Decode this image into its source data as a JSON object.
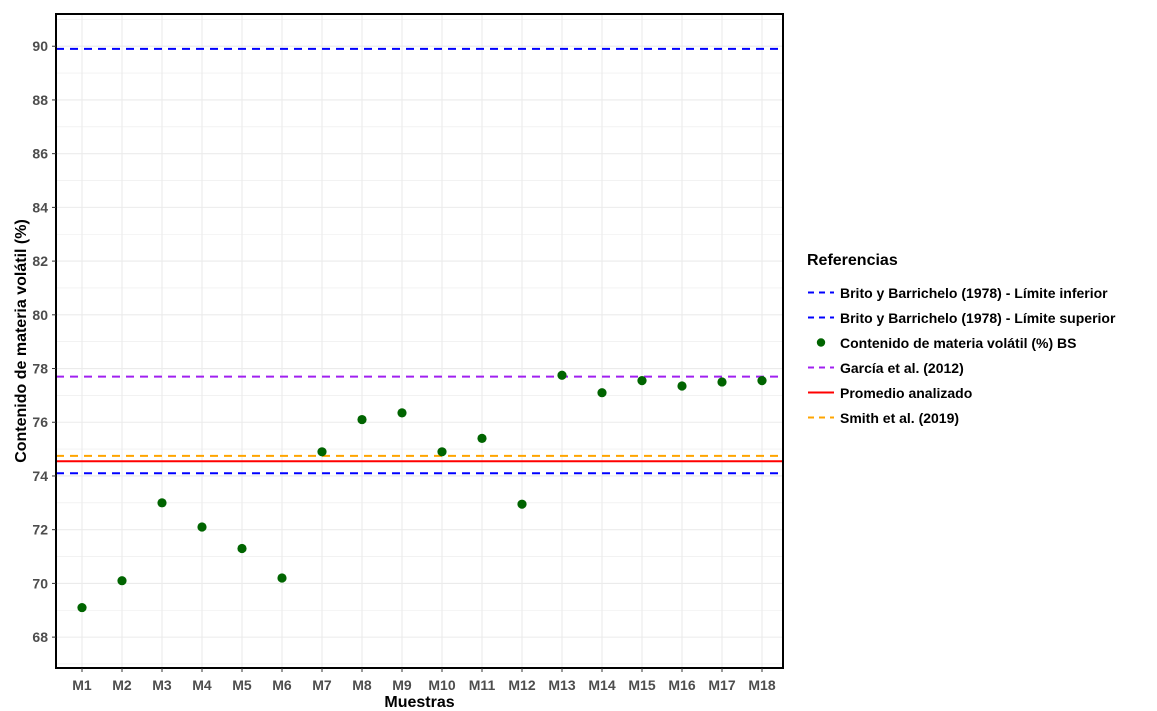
{
  "chart_data": {
    "type": "scatter",
    "xlabel": "Muestras",
    "ylabel": "Contenido de materia volátil (%)",
    "categories": [
      "M1",
      "M2",
      "M3",
      "M4",
      "M5",
      "M6",
      "M7",
      "M8",
      "M9",
      "M10",
      "M11",
      "M12",
      "M13",
      "M14",
      "M15",
      "M16",
      "M17",
      "M18"
    ],
    "series": [
      {
        "name": "Contenido de materia volátil (%) BS",
        "color": "#006400",
        "values": [
          69.1,
          70.1,
          73.0,
          72.1,
          71.3,
          70.2,
          74.9,
          76.1,
          76.35,
          74.9,
          75.4,
          72.95,
          77.75,
          77.1,
          77.55,
          77.35,
          77.5,
          77.55
        ]
      }
    ],
    "reference_lines": [
      {
        "name": "Brito y Barrichelo (1978) - Límite inferior",
        "value": 74.1,
        "color": "#0000ff",
        "style": "dashed"
      },
      {
        "name": "Brito y Barrichelo (1978) - Límite superior",
        "value": 89.9,
        "color": "#0000ff",
        "style": "dashed"
      },
      {
        "name": "García et al. (2012)",
        "value": 77.7,
        "color": "#a020f0",
        "style": "dashed"
      },
      {
        "name": "Promedio analizado",
        "value": 74.55,
        "color": "#ff0000",
        "style": "solid"
      },
      {
        "name": "Smith et al. (2019)",
        "value": 74.75,
        "color": "#ffa500",
        "style": "dashed"
      }
    ],
    "ylim": [
      66.85,
      91.2
    ],
    "yticks": [
      68,
      70,
      72,
      74,
      76,
      78,
      80,
      82,
      84,
      86,
      88,
      90
    ],
    "grid": true,
    "legend_placement": "right"
  },
  "legend": {
    "title": "Referencias",
    "items": [
      {
        "label": "Brito y Barrichelo (1978) - Límite inferior",
        "kind": "dashed",
        "color": "#0000ff"
      },
      {
        "label": "Brito y Barrichelo (1978) - Límite superior",
        "kind": "dashed",
        "color": "#0000ff"
      },
      {
        "label": "Contenido de materia volátil (%) BS",
        "kind": "point",
        "color": "#006400"
      },
      {
        "label": "García et al. (2012)",
        "kind": "dashed",
        "color": "#a020f0"
      },
      {
        "label": "Promedio analizado",
        "kind": "solid",
        "color": "#ff0000"
      },
      {
        "label": "Smith et al. (2019)",
        "kind": "dashed",
        "color": "#ffa500"
      }
    ]
  }
}
